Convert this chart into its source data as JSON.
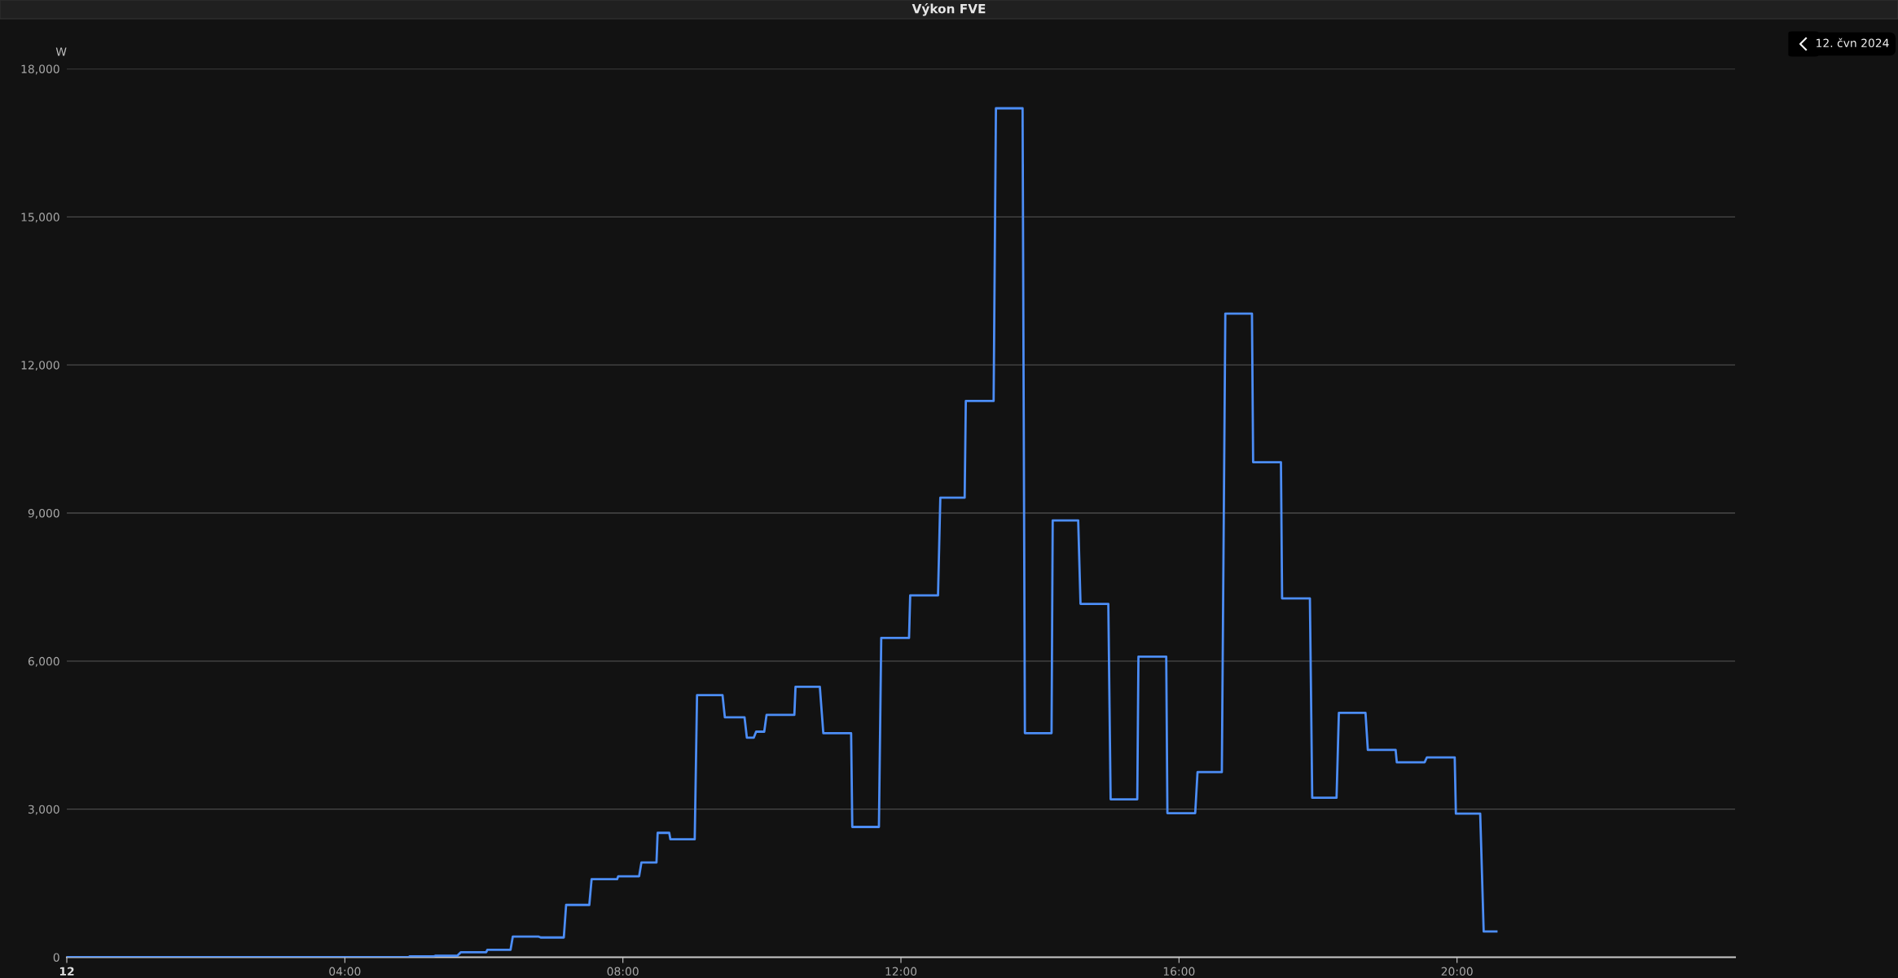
{
  "chart_data": {
    "type": "line",
    "title": "Výkon FVE",
    "ylabel": "W",
    "annotations": [
      "12. čvn 2024"
    ],
    "series": [
      {
        "color": "#4c8df6",
        "x": [
          "2024-06-12T00:00",
          "2024-06-12T04:55",
          "2024-06-12T04:56",
          "2024-06-12T05:17",
          "2024-06-12T05:18",
          "2024-06-12T05:37",
          "2024-06-12T05:40",
          "2024-06-12T06:02",
          "2024-06-12T06:03",
          "2024-06-12T06:23",
          "2024-06-12T06:25",
          "2024-06-12T06:47",
          "2024-06-12T06:49",
          "2024-06-12T07:09",
          "2024-06-12T07:11",
          "2024-06-12T07:31",
          "2024-06-12T07:33",
          "2024-06-12T07:55",
          "2024-06-12T07:56",
          "2024-06-12T08:14",
          "2024-06-12T08:16",
          "2024-06-12T08:29",
          "2024-06-12T08:30",
          "2024-06-12T08:40",
          "2024-06-12T08:41",
          "2024-06-12T09:02",
          "2024-06-12T09:04",
          "2024-06-12T09:26",
          "2024-06-12T09:28",
          "2024-06-12T09:45",
          "2024-06-12T09:47",
          "2024-06-12T09:53",
          "2024-06-12T09:55",
          "2024-06-12T10:02",
          "2024-06-12T10:04",
          "2024-06-12T10:28",
          "2024-06-12T10:29",
          "2024-06-12T10:50",
          "2024-06-12T10:53",
          "2024-06-12T11:17",
          "2024-06-12T11:18",
          "2024-06-12T11:41",
          "2024-06-12T11:43",
          "2024-06-12T12:07",
          "2024-06-12T12:08",
          "2024-06-12T12:32",
          "2024-06-12T12:34",
          "2024-06-12T12:55",
          "2024-06-12T12:56",
          "2024-06-12T13:20",
          "2024-06-12T13:22",
          "2024-06-12T13:45",
          "2024-06-12T13:47",
          "2024-06-12T14:10",
          "2024-06-12T14:11",
          "2024-06-12T14:33",
          "2024-06-12T14:35",
          "2024-06-12T14:59",
          "2024-06-12T15:01",
          "2024-06-12T15:24",
          "2024-06-12T15:25",
          "2024-06-12T15:49",
          "2024-06-12T15:50",
          "2024-06-12T16:14",
          "2024-06-12T16:16",
          "2024-06-12T16:37",
          "2024-06-12T16:40",
          "2024-06-12T17:03",
          "2024-06-12T17:04",
          "2024-06-12T17:28",
          "2024-06-12T17:29",
          "2024-06-12T17:53",
          "2024-06-12T17:55",
          "2024-06-12T18:16",
          "2024-06-12T18:18",
          "2024-06-12T18:41",
          "2024-06-12T18:43",
          "2024-06-12T19:07",
          "2024-06-12T19:08",
          "2024-06-12T19:32",
          "2024-06-12T19:34",
          "2024-06-12T19:58",
          "2024-06-12T19:59",
          "2024-06-12T20:20",
          "2024-06-12T20:23",
          "2024-06-12T20:34"
        ],
        "values": [
          0,
          0,
          20,
          20,
          30,
          30,
          100,
          100,
          150,
          150,
          420,
          420,
          400,
          400,
          1060,
          1060,
          1580,
          1580,
          1640,
          1640,
          1920,
          1920,
          2520,
          2520,
          2390,
          2390,
          5310,
          5310,
          4860,
          4860,
          4450,
          4450,
          4570,
          4570,
          4910,
          4910,
          5480,
          5480,
          4540,
          4540,
          2640,
          2640,
          6470,
          6470,
          7330,
          7330,
          9310,
          9310,
          11270,
          11270,
          17200,
          17200,
          4540,
          4540,
          8850,
          8850,
          7160,
          7160,
          3200,
          3200,
          6090,
          6090,
          2920,
          2920,
          3750,
          3750,
          13040,
          13040,
          10030,
          10030,
          7270,
          7270,
          3230,
          3230,
          4950,
          4950,
          4200,
          4200,
          3950,
          3950,
          4050,
          4050,
          2910,
          2910,
          520,
          520
        ]
      }
    ],
    "xlim": [
      "2024-06-12T00:00",
      "2024-06-13T00:00"
    ],
    "xticks": [
      {
        "value": "2024-06-12T00:00",
        "label": "12"
      },
      {
        "value": "2024-06-12T04:00",
        "label": "04:00"
      },
      {
        "value": "2024-06-12T08:00",
        "label": "08:00"
      },
      {
        "value": "2024-06-12T12:00",
        "label": "12:00"
      },
      {
        "value": "2024-06-12T16:00",
        "label": "16:00"
      },
      {
        "value": "2024-06-12T20:00",
        "label": "20:00"
      }
    ],
    "ylim": [
      0,
      18000
    ],
    "yticks": [
      {
        "value": 0,
        "label": "0"
      },
      {
        "value": 3000,
        "label": "3,000"
      },
      {
        "value": 6000,
        "label": "6,000"
      },
      {
        "value": 9000,
        "label": "9,000"
      },
      {
        "value": 12000,
        "label": "12,000"
      },
      {
        "value": 15000,
        "label": "15,000"
      },
      {
        "value": 18000,
        "label": "18,000"
      }
    ],
    "grid": "y",
    "legend": false,
    "marker": "none",
    "line_style": "solid"
  }
}
